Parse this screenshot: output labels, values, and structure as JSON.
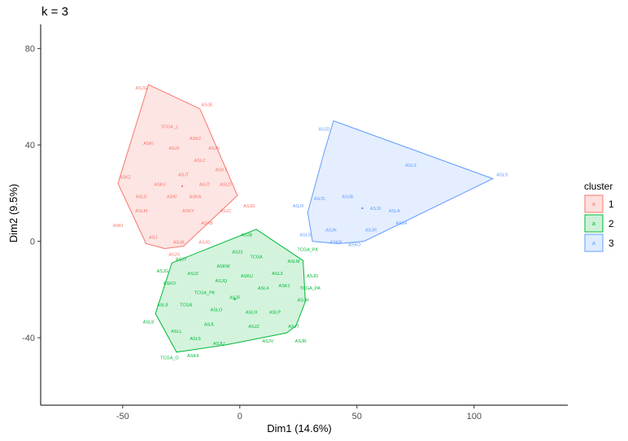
{
  "chart_data": {
    "type": "scatter",
    "title": "k = 3",
    "xlabel": "Dim1 (14.6%)",
    "ylabel": "Dim2 (9.5%)",
    "xlim": [
      -85,
      140
    ],
    "ylim": [
      -68,
      90
    ],
    "xticks": [
      -50,
      0,
      50,
      100
    ],
    "yticks": [
      -40,
      0,
      40,
      80
    ],
    "xtick_labels": [
      "-50",
      "0",
      "50",
      "100"
    ],
    "ytick_labels": [
      "-40",
      "0",
      "40",
      "80"
    ],
    "grid": false,
    "legend": {
      "title": "cluster",
      "position": "right",
      "entries": [
        {
          "label": "1",
          "glyph": "a",
          "color": "#F8766D",
          "fill": "#FDE0DE"
        },
        {
          "label": "2",
          "glyph": "a",
          "color": "#00BA38",
          "fill": "#CCF1D7"
        },
        {
          "label": "3",
          "glyph": "a",
          "color": "#619CFF",
          "fill": "#DFEBFF"
        }
      ]
    },
    "series": [
      {
        "name": "1",
        "color": "#F8766D",
        "fill": "#FDE0DE",
        "hull": [
          [
            -39,
            65
          ],
          [
            -17,
            55
          ],
          [
            -1,
            19
          ],
          [
            -24,
            -2
          ],
          [
            -32,
            -3
          ],
          [
            -40,
            -1
          ],
          [
            -52,
            24
          ]
        ],
        "points": [
          {
            "x": -42,
            "y": 63,
            "label": "ASJG"
          },
          {
            "x": -14,
            "y": 56,
            "label": "ASJE"
          },
          {
            "x": -30,
            "y": 47,
            "label": "TCGA_1"
          },
          {
            "x": -19,
            "y": 42,
            "label": "ASK2"
          },
          {
            "x": -39,
            "y": 40,
            "label": "ASKI"
          },
          {
            "x": -28,
            "y": 38,
            "label": "ASJF"
          },
          {
            "x": -11,
            "y": 38,
            "label": "ASJS"
          },
          {
            "x": -17,
            "y": 33,
            "label": "ASLC"
          },
          {
            "x": -8,
            "y": 29,
            "label": "ASKT"
          },
          {
            "x": -49,
            "y": 26,
            "label": "ASKZ"
          },
          {
            "x": -24,
            "y": 27,
            "label": "ASJT"
          },
          {
            "x": -34,
            "y": 23,
            "label": "ASKV"
          },
          {
            "x": -15,
            "y": 23,
            "label": "ASJT"
          },
          {
            "x": -6,
            "y": 23,
            "label": "ASLD"
          },
          {
            "x": -42,
            "y": 18,
            "label": "ASLE"
          },
          {
            "x": -29,
            "y": 18,
            "label": "ASKI"
          },
          {
            "x": -19,
            "y": 18,
            "label": "ASKA"
          },
          {
            "x": 4,
            "y": 14,
            "label": "ASJD"
          },
          {
            "x": -42,
            "y": 12,
            "label": "ASLM"
          },
          {
            "x": -22,
            "y": 12,
            "label": "ASKY"
          },
          {
            "x": -6,
            "y": 12,
            "label": "ASJC"
          },
          {
            "x": -52,
            "y": 6,
            "label": "ASKI"
          },
          {
            "x": -14,
            "y": 7,
            "label": "ASKB"
          },
          {
            "x": -37,
            "y": 1,
            "label": "ASJ"
          },
          {
            "x": -26,
            "y": -1,
            "label": "ASJA"
          },
          {
            "x": -15,
            "y": -1,
            "label": "ASJG"
          },
          {
            "x": -28,
            "y": -6,
            "label": "ASJS"
          }
        ]
      },
      {
        "name": "2",
        "color": "#00BA38",
        "fill": "#CCF1D7",
        "hull": [
          [
            7,
            5
          ],
          [
            27,
            -8
          ],
          [
            28,
            -25
          ],
          [
            24,
            -35
          ],
          [
            20,
            -38
          ],
          [
            -6,
            -43
          ],
          [
            -27,
            -46
          ],
          [
            -36,
            -30
          ],
          [
            -29,
            -9
          ]
        ],
        "points": [
          {
            "x": 3,
            "y": 2,
            "label": "ASJB"
          },
          {
            "x": -1,
            "y": -5,
            "label": "ASJ3"
          },
          {
            "x": 7,
            "y": -7,
            "label": "TCGA"
          },
          {
            "x": 29,
            "y": -4,
            "label": "TCGA_PK"
          },
          {
            "x": -25,
            "y": -8,
            "label": "ASJY"
          },
          {
            "x": 23,
            "y": -9,
            "label": "ASLM"
          },
          {
            "x": -7,
            "y": -11,
            "label": "ASKW"
          },
          {
            "x": -33,
            "y": -13,
            "label": "ASJG"
          },
          {
            "x": -20,
            "y": -14,
            "label": "ASJ2"
          },
          {
            "x": 16,
            "y": -14,
            "label": "ASL3"
          },
          {
            "x": 3,
            "y": -15,
            "label": "ASKU"
          },
          {
            "x": 31,
            "y": -15,
            "label": "ASJD"
          },
          {
            "x": -8,
            "y": -17,
            "label": "ASJQ"
          },
          {
            "x": -30,
            "y": -18,
            "label": "ASKO"
          },
          {
            "x": 19,
            "y": -19,
            "label": "ASK1"
          },
          {
            "x": 10,
            "y": -20,
            "label": "ASL4"
          },
          {
            "x": 30,
            "y": -20,
            "label": "TCGA_PA"
          },
          {
            "x": -15,
            "y": -22,
            "label": "TCGA_PK"
          },
          {
            "x": -2,
            "y": -24,
            "label": "ASJF"
          },
          {
            "x": 27,
            "y": -25,
            "label": "ASJH"
          },
          {
            "x": -33,
            "y": -27,
            "label": "ASL8"
          },
          {
            "x": -23,
            "y": -27,
            "label": "TCGA"
          },
          {
            "x": -10,
            "y": -29,
            "label": "ASLO"
          },
          {
            "x": 5,
            "y": -30,
            "label": "ASLH"
          },
          {
            "x": 15,
            "y": -30,
            "label": "ASLP"
          },
          {
            "x": -39,
            "y": -34,
            "label": "ASL8"
          },
          {
            "x": -13,
            "y": -35,
            "label": "ASJL"
          },
          {
            "x": 6,
            "y": -36,
            "label": "ASJZ"
          },
          {
            "x": 23,
            "y": -36,
            "label": "ASJT"
          },
          {
            "x": -27,
            "y": -38,
            "label": "ASLL"
          },
          {
            "x": -19,
            "y": -41,
            "label": "ASL5"
          },
          {
            "x": 12,
            "y": -42,
            "label": "ASJV"
          },
          {
            "x": 26,
            "y": -42,
            "label": "ASJR"
          },
          {
            "x": -9,
            "y": -43,
            "label": "ASJU"
          },
          {
            "x": -20,
            "y": -48,
            "label": "ASK4"
          },
          {
            "x": -30,
            "y": -49,
            "label": "TCGA_O"
          }
        ]
      },
      {
        "name": "3",
        "color": "#619CFF",
        "fill": "#DFEBFF",
        "hull": [
          [
            40,
            50
          ],
          [
            108,
            26
          ],
          [
            53,
            0
          ],
          [
            42,
            -1
          ],
          [
            31,
            0
          ],
          [
            29,
            12
          ],
          [
            36,
            37
          ]
        ],
        "points": [
          {
            "x": 36,
            "y": 46,
            "label": "ASJD"
          },
          {
            "x": 73,
            "y": 31,
            "label": "ASL3"
          },
          {
            "x": 112,
            "y": 27,
            "label": "ASLS"
          },
          {
            "x": 46,
            "y": 18,
            "label": "ASJB"
          },
          {
            "x": 34,
            "y": 17,
            "label": "ASJS"
          },
          {
            "x": 25,
            "y": 14,
            "label": "ASJX"
          },
          {
            "x": 58,
            "y": 13,
            "label": "ASJX"
          },
          {
            "x": 66,
            "y": 12,
            "label": "ASLA"
          },
          {
            "x": 69,
            "y": 7,
            "label": "ASJH"
          },
          {
            "x": 39,
            "y": 4,
            "label": "ASJK"
          },
          {
            "x": 56,
            "y": 4,
            "label": "ASJR"
          },
          {
            "x": 28,
            "y": 2,
            "label": "ASLS"
          },
          {
            "x": 41,
            "y": -1,
            "label": "ASKB"
          },
          {
            "x": 49,
            "y": -2,
            "label": "ASKO"
          }
        ]
      }
    ]
  }
}
